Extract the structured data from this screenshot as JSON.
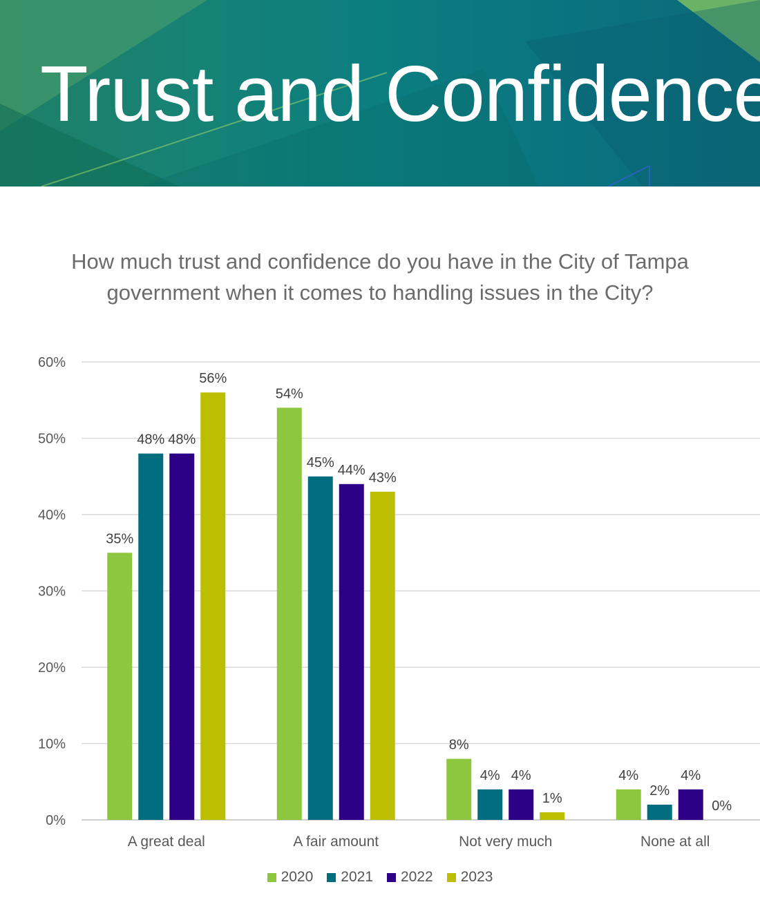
{
  "banner": {
    "title": "Trust and Confidence"
  },
  "chart_data": {
    "type": "bar",
    "title": "How much trust and confidence do you have in the City of Tampa government when it comes to handling issues in the City?",
    "categories": [
      "A great deal",
      "A fair amount",
      "Not very much",
      "None at all"
    ],
    "series": [
      {
        "name": "2020",
        "color": "#8dc63f",
        "values": [
          35,
          54,
          8,
          4
        ]
      },
      {
        "name": "2021",
        "color": "#006e7f",
        "values": [
          48,
          45,
          4,
          2
        ]
      },
      {
        "name": "2022",
        "color": "#2e0085",
        "values": [
          48,
          44,
          4,
          4
        ]
      },
      {
        "name": "2023",
        "color": "#bcbe00",
        "values": [
          56,
          43,
          1,
          0
        ]
      }
    ],
    "ylim": [
      0,
      60
    ],
    "yticks": [
      0,
      10,
      20,
      30,
      40,
      50,
      60
    ],
    "ytick_labels": [
      "0%",
      "10%",
      "20%",
      "30%",
      "40%",
      "50%",
      "60%"
    ],
    "data_labels": [
      [
        "35%",
        "54%",
        "8%",
        "4%"
      ],
      [
        "48%",
        "45%",
        "4%",
        "2%"
      ],
      [
        "48%",
        "44%",
        "4%",
        "4%"
      ],
      [
        "56%",
        "43%",
        "1%",
        "0%"
      ]
    ],
    "grid": true,
    "legend": "bottom-center",
    "xlabel": "",
    "ylabel": ""
  }
}
